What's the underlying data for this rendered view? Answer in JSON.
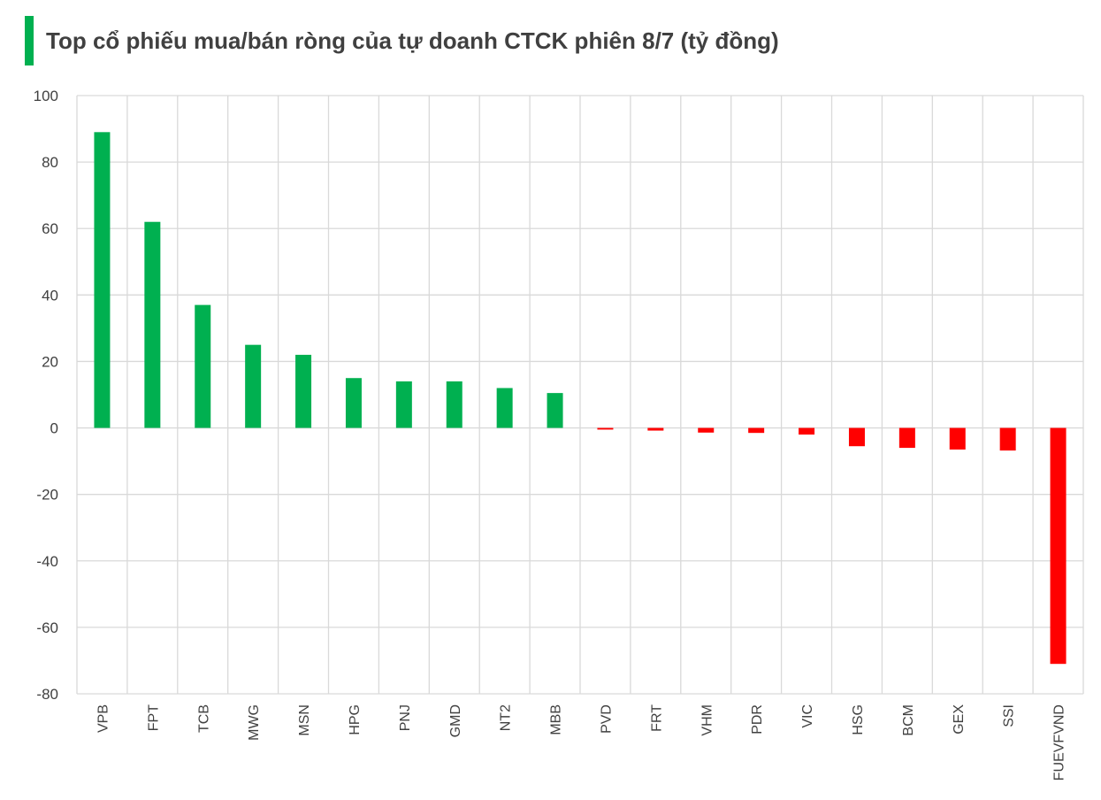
{
  "colors": {
    "positive": "#00b050",
    "negative": "#ff0000",
    "grid": "#d9d9d9",
    "accent": "#00b050"
  },
  "chart_data": {
    "type": "bar",
    "title": "Top cổ phiếu mua/bán ròng của tự doanh CTCK phiên 8/7 (tỷ đồng)",
    "categories": [
      "VPB",
      "FPT",
      "TCB",
      "MWG",
      "MSN",
      "HPG",
      "PNJ",
      "GMD",
      "NT2",
      "MBB",
      "PVD",
      "FRT",
      "VHM",
      "PDR",
      "VIC",
      "HSG",
      "BCM",
      "GEX",
      "SSI",
      "FUEVFVND"
    ],
    "values": [
      89,
      62,
      37,
      25,
      22,
      15,
      14,
      14,
      12,
      10.5,
      -0.5,
      -0.8,
      -1.4,
      -1.5,
      -2,
      -5.5,
      -6,
      -6.5,
      -6.8,
      -71
    ],
    "ylim": [
      -80,
      100
    ],
    "yticks": [
      100,
      80,
      60,
      40,
      20,
      0,
      -20,
      -40,
      -60,
      -80
    ],
    "grid": true,
    "legend": "none"
  }
}
